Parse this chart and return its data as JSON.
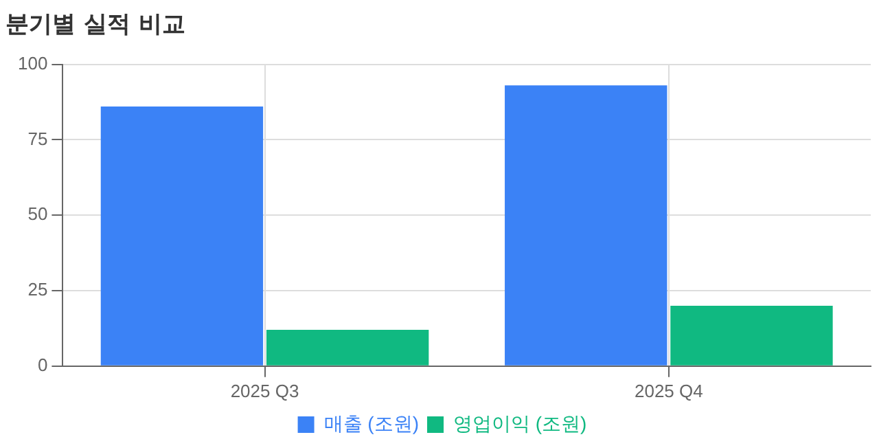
{
  "chart_data": {
    "type": "bar",
    "title": "분기별 실적 비교",
    "categories": [
      "2025 Q3",
      "2025 Q4"
    ],
    "series": [
      {
        "name": "매출 (조원)",
        "color": "#3b82f6",
        "values": [
          86,
          93
        ]
      },
      {
        "name": "영업이익 (조원)",
        "color": "#10b981",
        "values": [
          12,
          20
        ]
      }
    ],
    "ylim": [
      0,
      100
    ],
    "yticks": [
      0,
      25,
      50,
      75,
      100
    ],
    "grid": true,
    "legend": "bottom"
  }
}
